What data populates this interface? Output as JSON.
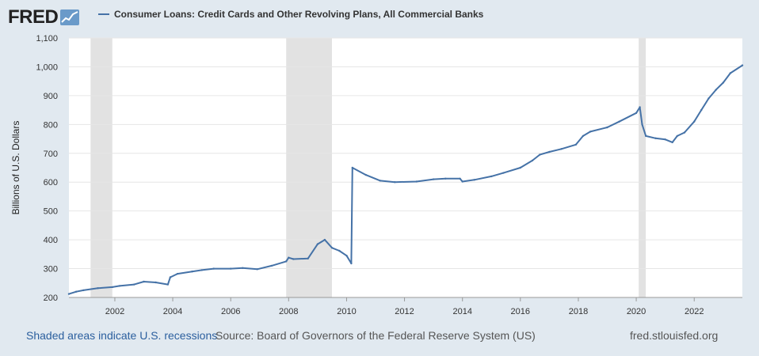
{
  "header": {
    "logo_text": "FRED",
    "logo_icon": "line-chart-icon"
  },
  "chart_data": {
    "type": "line",
    "title": "",
    "xlabel": "",
    "ylabel": "Billions of U.S. Dollars",
    "ylim": [
      200,
      1100
    ],
    "xlim": [
      "2000-06-01",
      "2023-08-31"
    ],
    "grid": true,
    "legend_position": "top-left",
    "y_ticks": [
      "200",
      "300",
      "400",
      "500",
      "600",
      "700",
      "800",
      "900",
      "1,000",
      "1,100"
    ],
    "x_ticks": [
      "2002",
      "2004",
      "2006",
      "2008",
      "2010",
      "2012",
      "2014",
      "2016",
      "2018",
      "2020",
      "2022"
    ],
    "recessions": [
      [
        "2001-03-01",
        "2001-11-30"
      ],
      [
        "2007-12-01",
        "2009-06-30"
      ],
      [
        "2020-02-01",
        "2020-04-30"
      ]
    ],
    "series": [
      {
        "name": "Consumer Loans: Credit Cards and Other Revolving Plans, All Commercial Banks",
        "color": "#4572a7",
        "points": [
          [
            "2000-06-01",
            212
          ],
          [
            "2000-09-01",
            220
          ],
          [
            "2000-12-01",
            225
          ],
          [
            "2001-06-01",
            232
          ],
          [
            "2001-12-01",
            236
          ],
          [
            "2002-03-01",
            240
          ],
          [
            "2002-09-01",
            245
          ],
          [
            "2003-01-01",
            255
          ],
          [
            "2003-06-01",
            252
          ],
          [
            "2003-11-01",
            245
          ],
          [
            "2003-12-01",
            270
          ],
          [
            "2004-03-01",
            282
          ],
          [
            "2004-09-01",
            290
          ],
          [
            "2005-01-01",
            295
          ],
          [
            "2005-06-01",
            300
          ],
          [
            "2006-01-01",
            300
          ],
          [
            "2006-06-01",
            302
          ],
          [
            "2006-12-01",
            298
          ],
          [
            "2007-06-01",
            310
          ],
          [
            "2007-12-01",
            325
          ],
          [
            "2008-01-01",
            338
          ],
          [
            "2008-03-01",
            333
          ],
          [
            "2008-09-01",
            335
          ],
          [
            "2009-01-01",
            385
          ],
          [
            "2009-04-01",
            400
          ],
          [
            "2009-07-01",
            372
          ],
          [
            "2009-10-01",
            362
          ],
          [
            "2010-01-01",
            345
          ],
          [
            "2010-03-01",
            318
          ],
          [
            "2010-03-15",
            650
          ],
          [
            "2010-09-01",
            625
          ],
          [
            "2011-03-01",
            605
          ],
          [
            "2011-09-01",
            600
          ],
          [
            "2012-06-01",
            602
          ],
          [
            "2013-01-01",
            610
          ],
          [
            "2013-06-01",
            612
          ],
          [
            "2013-12-01",
            612
          ],
          [
            "2014-01-01",
            602
          ],
          [
            "2014-06-01",
            608
          ],
          [
            "2015-01-01",
            620
          ],
          [
            "2015-06-01",
            632
          ],
          [
            "2016-01-01",
            650
          ],
          [
            "2016-06-01",
            675
          ],
          [
            "2016-09-01",
            695
          ],
          [
            "2017-01-01",
            705
          ],
          [
            "2017-06-01",
            715
          ],
          [
            "2017-12-01",
            730
          ],
          [
            "2018-03-01",
            760
          ],
          [
            "2018-06-01",
            775
          ],
          [
            "2019-01-01",
            790
          ],
          [
            "2019-06-01",
            810
          ],
          [
            "2020-01-01",
            840
          ],
          [
            "2020-02-15",
            860
          ],
          [
            "2020-03-15",
            800
          ],
          [
            "2020-05-01",
            760
          ],
          [
            "2020-09-01",
            752
          ],
          [
            "2021-01-01",
            748
          ],
          [
            "2021-04-01",
            738
          ],
          [
            "2021-06-01",
            760
          ],
          [
            "2021-09-01",
            772
          ],
          [
            "2022-01-01",
            810
          ],
          [
            "2022-04-01",
            850
          ],
          [
            "2022-07-01",
            890
          ],
          [
            "2022-10-01",
            920
          ],
          [
            "2023-01-01",
            945
          ],
          [
            "2023-04-01",
            978
          ],
          [
            "2023-08-31",
            1005
          ]
        ]
      }
    ]
  },
  "footer": {
    "recession_note": "Shaded areas indicate U.S. recessions",
    "source": "Source: Board of Governors of the Federal Reserve System (US)",
    "site": "fred.stlouisfed.org"
  },
  "colors": {
    "background": "#e1e9f0",
    "plot_background": "#ffffff",
    "recession_shading": "#e2e2e2",
    "series_line": "#4572a7",
    "link": "#2b5f9e"
  }
}
